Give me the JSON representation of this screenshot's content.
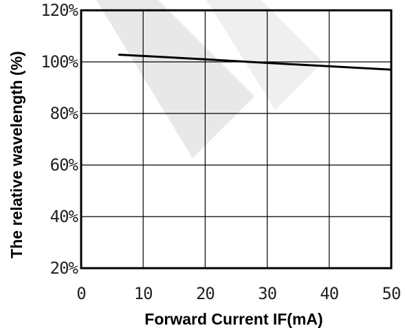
{
  "chart_data": {
    "type": "line",
    "xlabel": "Forward Current IF(mA)",
    "ylabel": "The relative wavelength (%)",
    "xlim": [
      0,
      50
    ],
    "ylim": [
      20,
      120
    ],
    "x_ticks": [
      "0",
      "10",
      "20",
      "30",
      "40",
      "50"
    ],
    "y_ticks": [
      "120%",
      "100%",
      "80%",
      "60%",
      "40%",
      "20%"
    ],
    "grid": true,
    "series": [
      {
        "x": [
          6,
          10,
          20,
          30,
          40,
          50
        ],
        "y": [
          102.8,
          102.3,
          101.0,
          99.6,
          98.3,
          97.0
        ]
      }
    ],
    "colors": {
      "line": "#000000",
      "grid": "#000000",
      "watermark": "#e6e6e6"
    }
  }
}
